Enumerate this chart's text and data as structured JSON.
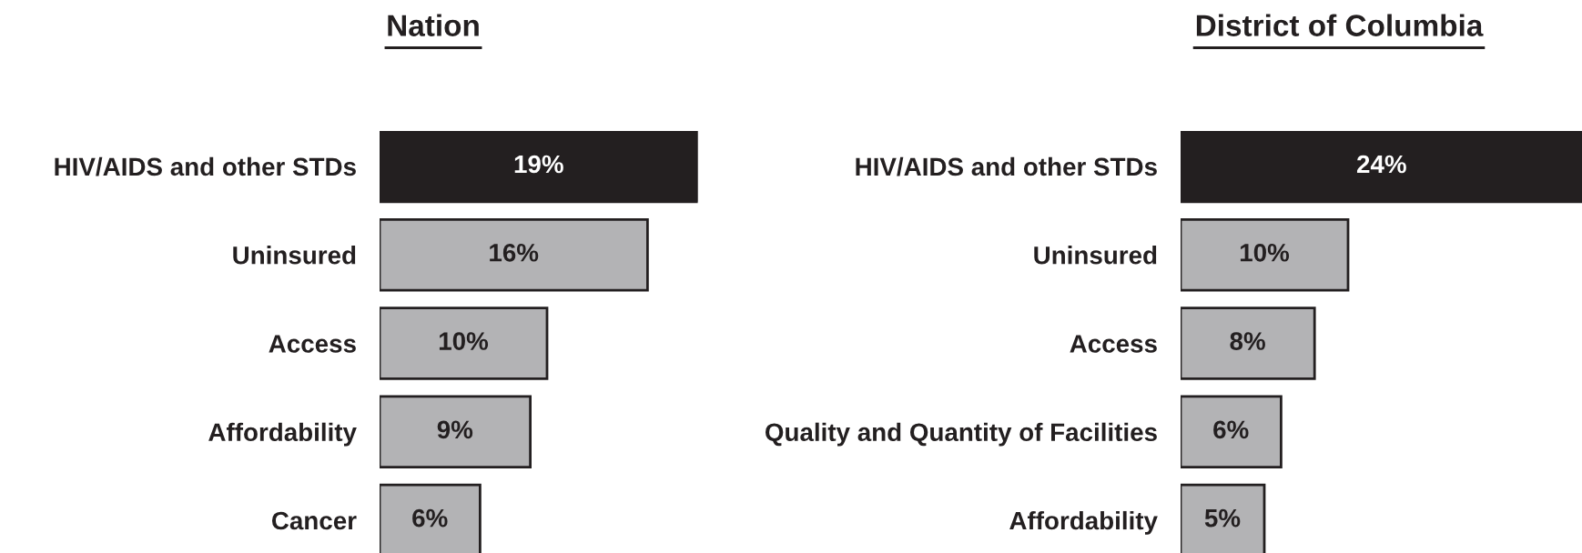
{
  "chart_data": [
    {
      "type": "bar",
      "orientation": "horizontal",
      "title": "Nation",
      "categories": [
        "HIV/AIDS and other STDs",
        "Uninsured",
        "Access",
        "Affordability",
        "Cancer"
      ],
      "values": [
        19,
        16,
        10,
        9,
        6
      ],
      "colors": [
        "#231f20",
        "#b3b3b5",
        "#b3b3b5",
        "#b3b3b5",
        "#b3b3b5"
      ],
      "value_labels": [
        "19%",
        "16%",
        "10%",
        "9%",
        "6%"
      ]
    },
    {
      "type": "bar",
      "orientation": "horizontal",
      "title": "District of Columbia",
      "categories": [
        "HIV/AIDS and other STDs",
        "Uninsured",
        "Access",
        "Quality and Quantity of Facilities",
        "Affordability"
      ],
      "values": [
        24,
        10,
        8,
        6,
        5
      ],
      "colors": [
        "#231f20",
        "#b3b3b5",
        "#b3b3b5",
        "#b3b3b5",
        "#b3b3b5"
      ],
      "value_labels": [
        "24%",
        "10%",
        "8%",
        "6%",
        "5%"
      ]
    }
  ]
}
